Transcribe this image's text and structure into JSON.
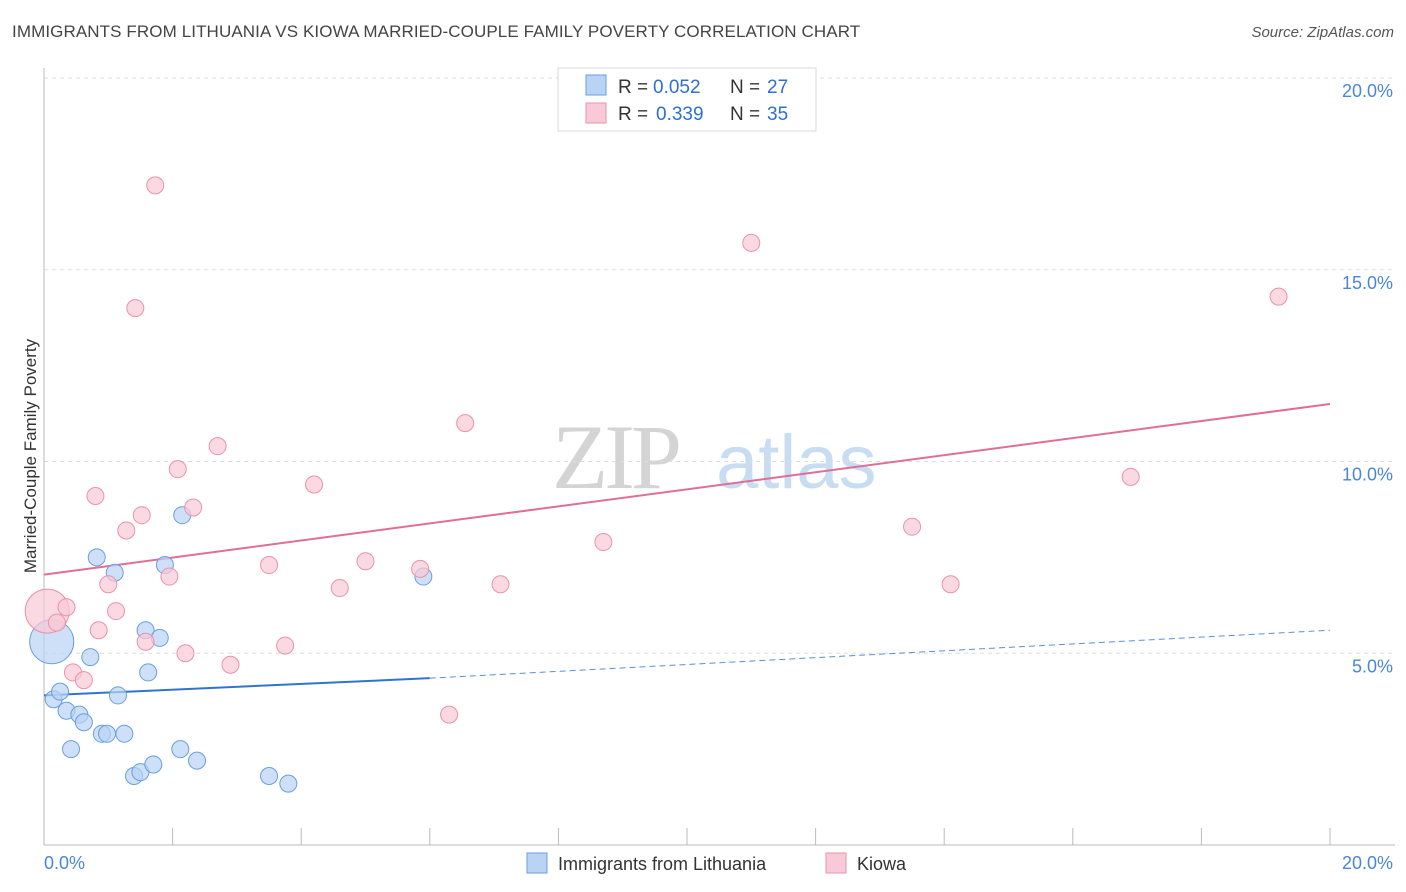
{
  "title": "IMMIGRANTS FROM LITHUANIA VS KIOWA MARRIED-COUPLE FAMILY POVERTY CORRELATION CHART",
  "source": "Source: ZipAtlas.com",
  "watermark": {
    "zip": "ZIP",
    "atlas": "atlas"
  },
  "colors": {
    "blue_fill": "#b8d3f3",
    "blue_stroke": "#6b9fe0",
    "blue_line": "#2f74d0",
    "pink_fill": "#f9c9d6",
    "pink_stroke": "#ea92ad",
    "pink_line": "#e06e96",
    "grid": "#dddddd",
    "tick_text": "#4a86d8"
  },
  "legend": {
    "rows": [
      {
        "r_label": "R = ",
        "r_value": "0.052",
        "n_label": "N = ",
        "n_value": "27",
        "series": "blue"
      },
      {
        "r_label": "R = ",
        "r_value": "0.339",
        "n_label": "N = ",
        "n_value": "35",
        "series": "pink"
      }
    ]
  },
  "bottom_legend": [
    "Immigrants from Lithuania",
    "Kiowa"
  ],
  "chart_data": {
    "type": "scatter",
    "title": "IMMIGRANTS FROM LITHUANIA VS KIOWA MARRIED-COUPLE FAMILY POVERTY CORRELATION CHART",
    "xlabel": "",
    "ylabel": "Married-Couple Family Poverty",
    "xlim": [
      0,
      20
    ],
    "ylim": [
      0,
      20
    ],
    "x_tick_labels": [
      "0.0%",
      "20.0%"
    ],
    "y_ticks": [
      5,
      10,
      15,
      20
    ],
    "y_tick_labels": [
      "5.0%",
      "10.0%",
      "15.0%",
      "20.0%"
    ],
    "grid": true,
    "series": [
      {
        "name": "Immigrants from Lithuania",
        "color": "blue",
        "r": 0.052,
        "n": 27,
        "trend": {
          "x0": 0,
          "y0": 3.9,
          "x1": 6.0,
          "y1": 4.35,
          "dashed_to_x": 20,
          "dashed_to_y": 5.6
        },
        "points": [
          {
            "x": 0.12,
            "y": 5.3,
            "big": true
          },
          {
            "x": 0.15,
            "y": 3.8
          },
          {
            "x": 0.25,
            "y": 4.0
          },
          {
            "x": 0.35,
            "y": 3.5
          },
          {
            "x": 0.42,
            "y": 2.5
          },
          {
            "x": 0.55,
            "y": 3.4
          },
          {
            "x": 0.62,
            "y": 3.2
          },
          {
            "x": 0.72,
            "y": 4.9
          },
          {
            "x": 0.82,
            "y": 7.5
          },
          {
            "x": 0.9,
            "y": 2.9
          },
          {
            "x": 0.98,
            "y": 2.9
          },
          {
            "x": 1.1,
            "y": 7.1
          },
          {
            "x": 1.15,
            "y": 3.9
          },
          {
            "x": 1.25,
            "y": 2.9
          },
          {
            "x": 1.4,
            "y": 1.8
          },
          {
            "x": 1.5,
            "y": 1.9
          },
          {
            "x": 1.58,
            "y": 5.6
          },
          {
            "x": 1.62,
            "y": 4.5
          },
          {
            "x": 1.7,
            "y": 2.1
          },
          {
            "x": 1.8,
            "y": 5.4
          },
          {
            "x": 1.88,
            "y": 7.3
          },
          {
            "x": 2.15,
            "y": 8.6
          },
          {
            "x": 2.12,
            "y": 2.5
          },
          {
            "x": 2.38,
            "y": 2.2
          },
          {
            "x": 3.5,
            "y": 1.8
          },
          {
            "x": 3.8,
            "y": 1.6
          },
          {
            "x": 5.9,
            "y": 7.0
          }
        ]
      },
      {
        "name": "Kiowa",
        "color": "pink",
        "r": 0.339,
        "n": 35,
        "trend": {
          "x0": 0,
          "y0": 7.05,
          "x1": 20,
          "y1": 11.5
        },
        "points": [
          {
            "x": 0.05,
            "y": 6.1,
            "big": true
          },
          {
            "x": 0.2,
            "y": 5.8
          },
          {
            "x": 0.35,
            "y": 6.2
          },
          {
            "x": 0.45,
            "y": 4.5
          },
          {
            "x": 0.62,
            "y": 4.3
          },
          {
            "x": 0.8,
            "y": 9.1
          },
          {
            "x": 0.85,
            "y": 5.6
          },
          {
            "x": 1.0,
            "y": 6.8
          },
          {
            "x": 1.12,
            "y": 6.1
          },
          {
            "x": 1.28,
            "y": 8.2
          },
          {
            "x": 1.42,
            "y": 14.0
          },
          {
            "x": 1.52,
            "y": 8.6
          },
          {
            "x": 1.58,
            "y": 5.3
          },
          {
            "x": 1.73,
            "y": 17.2
          },
          {
            "x": 1.95,
            "y": 7.0
          },
          {
            "x": 2.08,
            "y": 9.8
          },
          {
            "x": 2.2,
            "y": 5.0
          },
          {
            "x": 2.32,
            "y": 8.8
          },
          {
            "x": 2.7,
            "y": 10.4
          },
          {
            "x": 2.9,
            "y": 4.7
          },
          {
            "x": 3.5,
            "y": 7.3
          },
          {
            "x": 3.75,
            "y": 5.2
          },
          {
            "x": 4.2,
            "y": 9.4
          },
          {
            "x": 4.6,
            "y": 6.7
          },
          {
            "x": 5.0,
            "y": 7.4
          },
          {
            "x": 5.85,
            "y": 7.2
          },
          {
            "x": 6.3,
            "y": 3.4
          },
          {
            "x": 6.55,
            "y": 11.0
          },
          {
            "x": 7.1,
            "y": 6.8
          },
          {
            "x": 8.7,
            "y": 7.9
          },
          {
            "x": 11.0,
            "y": 15.7
          },
          {
            "x": 13.5,
            "y": 8.3
          },
          {
            "x": 14.1,
            "y": 6.8
          },
          {
            "x": 16.9,
            "y": 9.6
          },
          {
            "x": 19.2,
            "y": 14.3
          }
        ]
      }
    ]
  }
}
